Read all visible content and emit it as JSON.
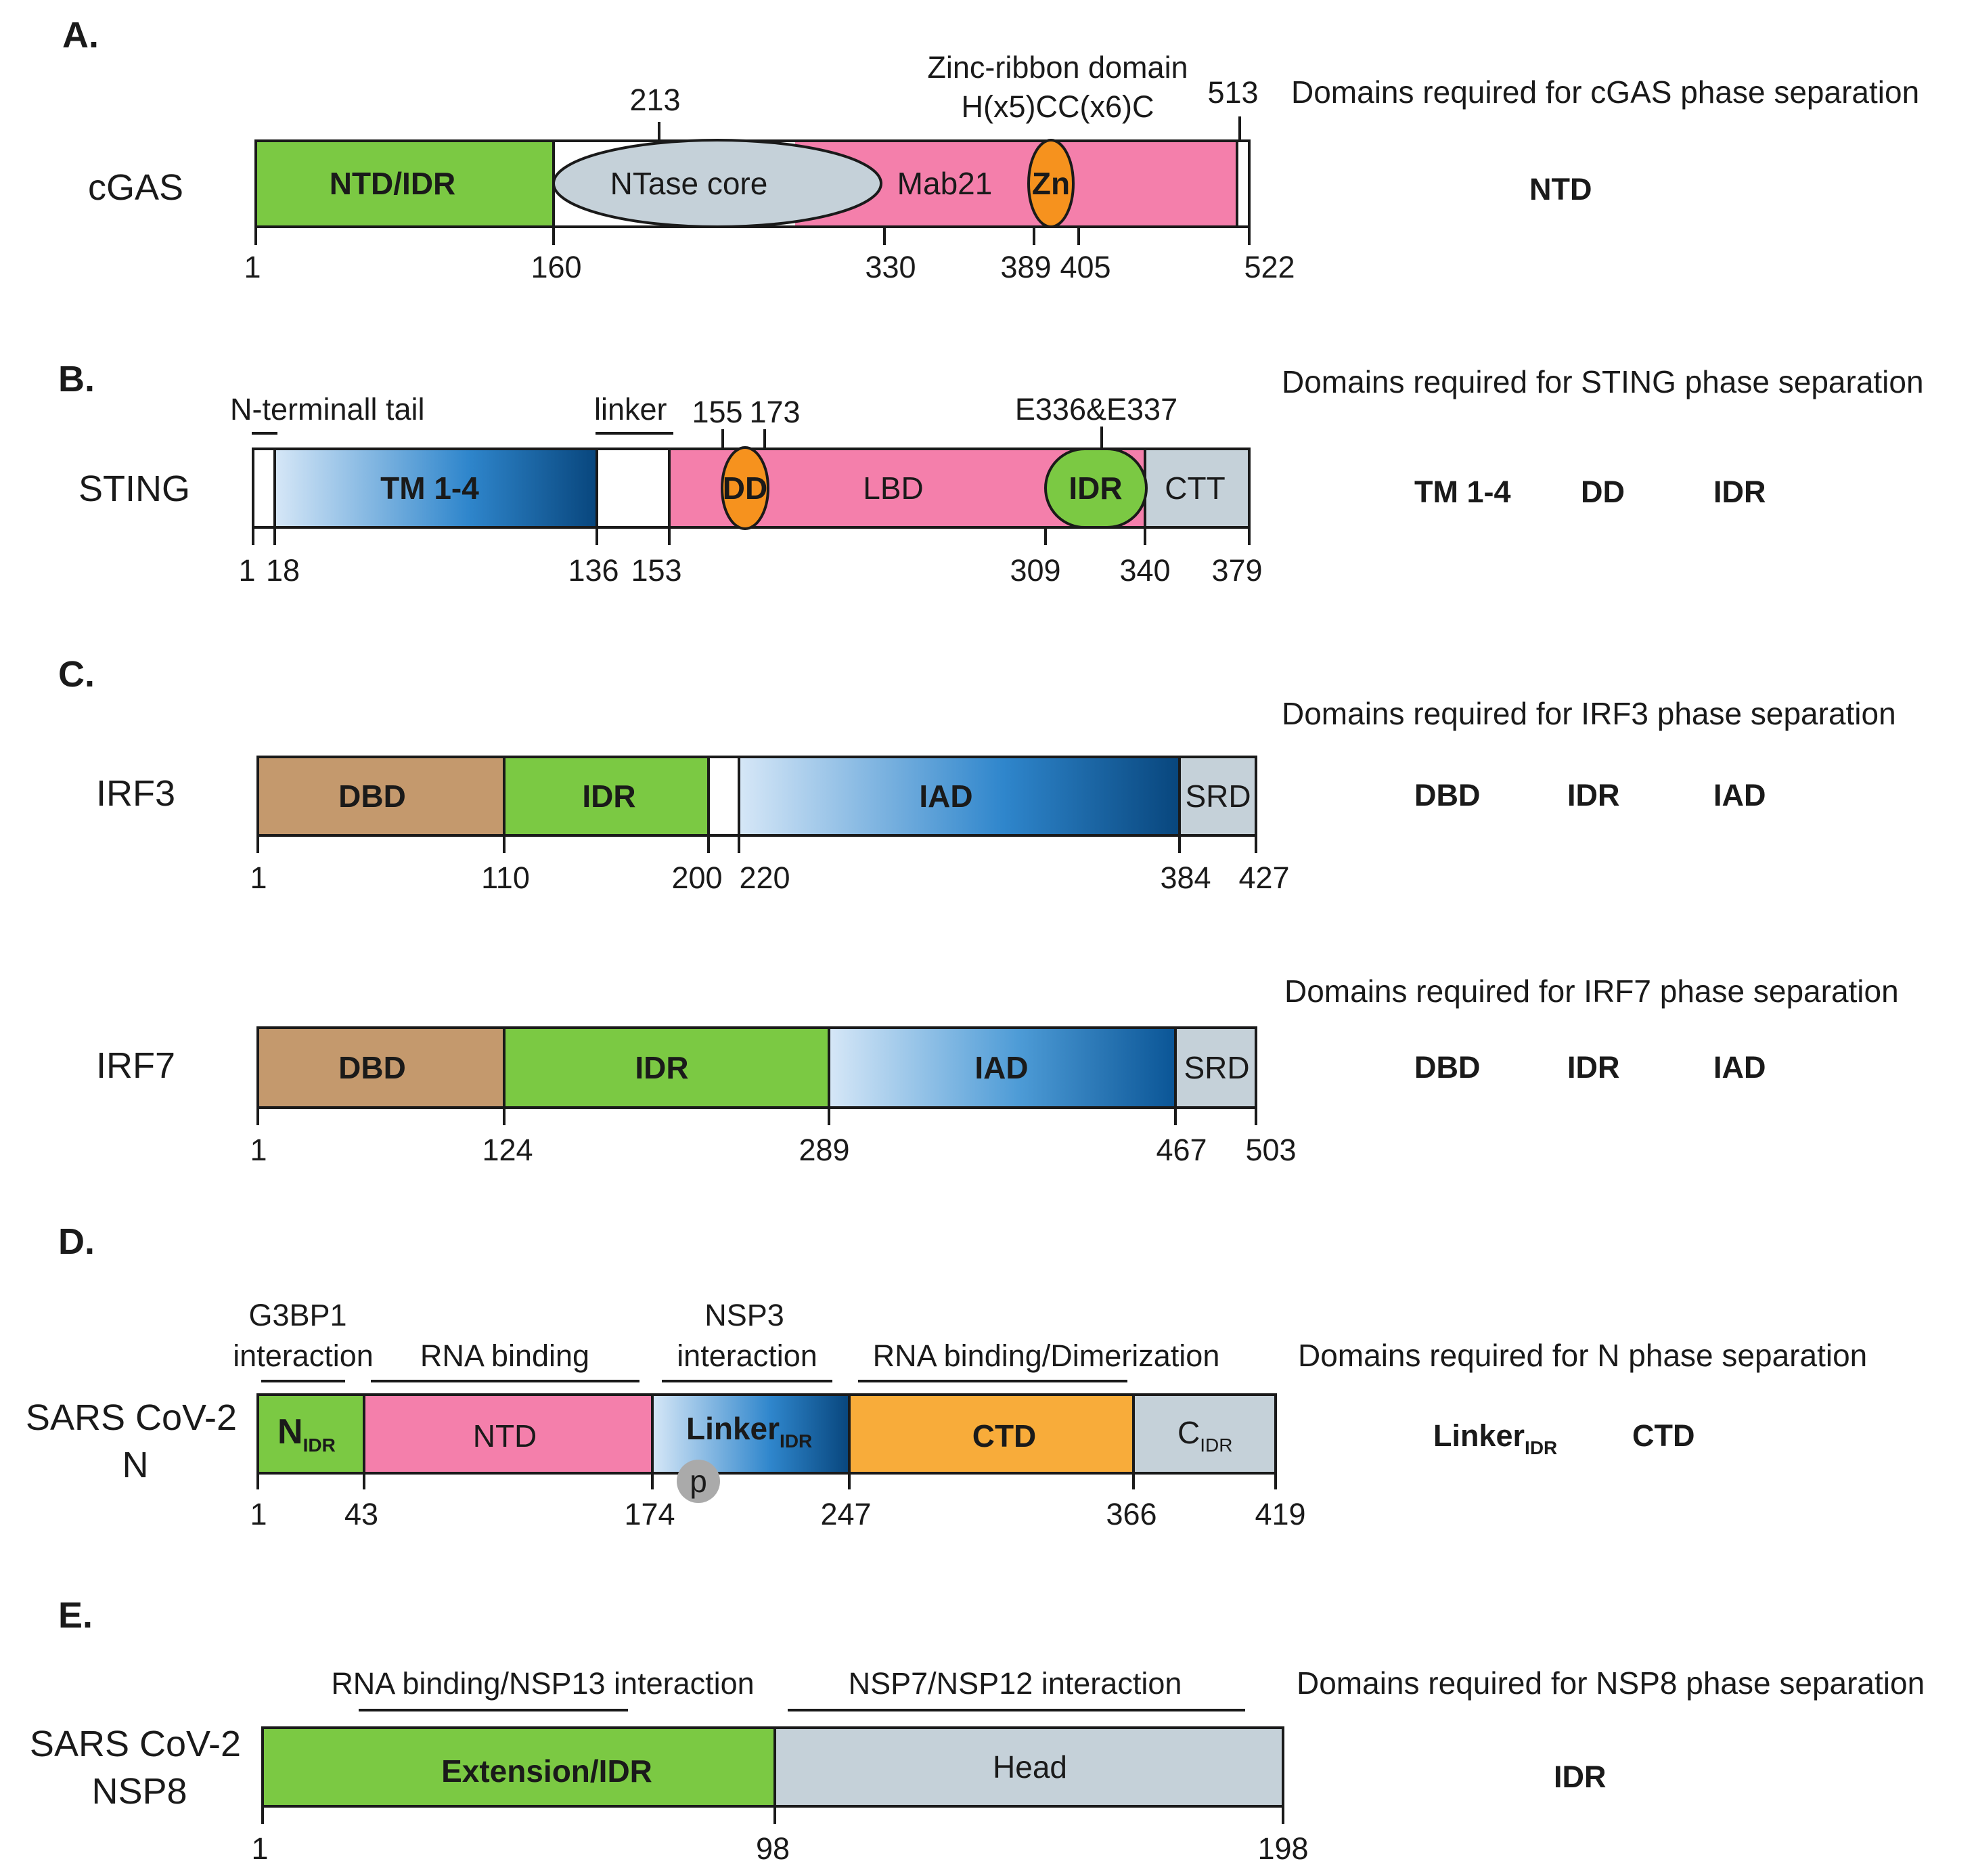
{
  "colors": {
    "green": "#7bc943",
    "pink": "#f47fab",
    "grey": "#c5d1d9",
    "brown": "#c4996d",
    "orange": "#f6921e",
    "ctd_orange": "#f8ac3a",
    "blue_light": "#d2e4f5",
    "blue_dark": "#0b5a9c",
    "p_grey": "#aaaaaa"
  },
  "panels": {
    "A": {
      "label": "A.",
      "protein": "cGAS",
      "title": "Domains required for cGAS phase separation",
      "required": [
        "NTD"
      ],
      "domains": {
        "ntd": "NTD/IDR",
        "ntase": "NTase core",
        "mab21": "Mab21",
        "zn": "Zn"
      },
      "annot": {
        "zinc_line1": "Zinc-ribbon domain",
        "zinc_line2": "H(x5)CC(x6)C",
        "pos213": "213",
        "pos513": "513"
      },
      "ticks": [
        "1",
        "160",
        "330",
        "389",
        "405",
        "522"
      ]
    },
    "B": {
      "label": "B.",
      "protein": "STING",
      "title": "Domains required for STING phase separation",
      "required": [
        "TM 1-4",
        "DD",
        "IDR"
      ],
      "domains": {
        "tm": "TM 1-4",
        "dd": "DD",
        "lbd": "LBD",
        "idr": "IDR",
        "ctt": "CTT"
      },
      "annot": {
        "ntail": "N-terminall tail",
        "linker": "linker",
        "pos155": "155",
        "pos173": "173",
        "e336": "E336&E337"
      },
      "ticks": [
        "1",
        "18",
        "136",
        "153",
        "309",
        "340",
        "379"
      ]
    },
    "C1": {
      "label": "C.",
      "protein": "IRF3",
      "title": "Domains required for IRF3 phase separation",
      "required": [
        "DBD",
        "IDR",
        "IAD"
      ],
      "domains": {
        "dbd": "DBD",
        "idr": "IDR",
        "iad": "IAD",
        "srd": "SRD"
      },
      "ticks": [
        "1",
        "110",
        "200",
        "220",
        "384",
        "427"
      ]
    },
    "C2": {
      "protein": "IRF7",
      "title": "Domains required for IRF7 phase separation",
      "required": [
        "DBD",
        "IDR",
        "IAD"
      ],
      "domains": {
        "dbd": "DBD",
        "idr": "IDR",
        "iad": "IAD",
        "srd": "SRD"
      },
      "ticks": [
        "1",
        "124",
        "289",
        "467",
        "503"
      ]
    },
    "D": {
      "label": "D.",
      "protein_line1": "SARS CoV-2",
      "protein_line2": "N",
      "title": "Domains required for N phase separation",
      "required": [
        {
          "main": "Linker",
          "sub": "IDR"
        },
        {
          "main": "CTD"
        }
      ],
      "domains": {
        "n_main": "N",
        "n_sub": "IDR",
        "ntd": "NTD",
        "linker_main": "Linker",
        "linker_sub": "IDR",
        "ctd": "CTD",
        "c_main": "C",
        "c_sub": "IDR",
        "phospho": "p"
      },
      "annot": {
        "g3bp1_line1": "G3BP1",
        "g3bp1_line2": "interaction",
        "rna": "RNA binding",
        "nsp3_line1": "NSP3",
        "nsp3_line2": "interaction",
        "rnadim": "RNA binding/Dimerization"
      },
      "ticks": [
        "1",
        "43",
        "174",
        "247",
        "366",
        "419"
      ]
    },
    "E": {
      "label": "E.",
      "protein_line1": "SARS CoV-2",
      "protein_line2": "NSP8",
      "title": "Domains required for NSP8 phase separation",
      "required": [
        "IDR"
      ],
      "domains": {
        "ext": "Extension/IDR",
        "head": "Head"
      },
      "annot": {
        "rna13": "RNA binding/NSP13 interaction",
        "nsp7": "NSP7/NSP12 interaction"
      },
      "ticks": [
        "1",
        "98",
        "198"
      ]
    }
  }
}
